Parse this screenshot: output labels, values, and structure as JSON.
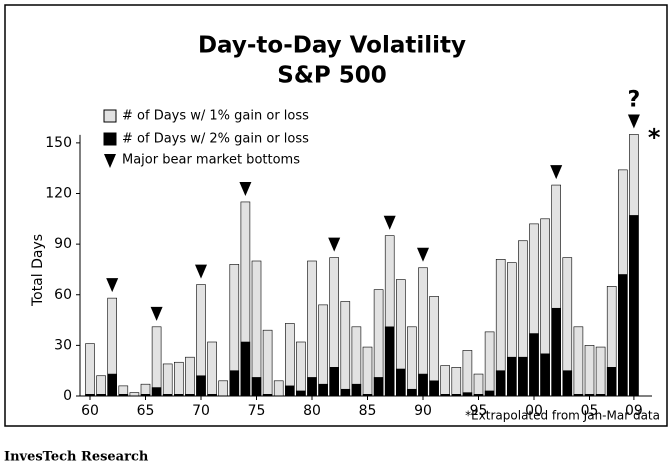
{
  "chart_data": {
    "type": "bar",
    "title": "Day-to-Day Volatility",
    "subtitle": "S&P 500",
    "y_label": "Total Days",
    "categories": [
      "60",
      null,
      null,
      null,
      null,
      "65",
      null,
      null,
      null,
      null,
      "70",
      null,
      null,
      null,
      null,
      "75",
      null,
      null,
      null,
      null,
      "80",
      null,
      null,
      null,
      null,
      "85",
      null,
      null,
      null,
      null,
      "90",
      null,
      null,
      null,
      null,
      "95",
      null,
      null,
      null,
      null,
      "00",
      null,
      null,
      null,
      null,
      "05",
      null,
      null,
      null,
      "09"
    ],
    "series": [
      {
        "name": "# of Days w/ 1% gain or loss",
        "color": "#e2e2e2",
        "values": [
          31,
          12,
          58,
          6,
          2,
          7,
          41,
          19,
          20,
          23,
          66,
          32,
          9,
          78,
          115,
          80,
          39,
          9,
          43,
          32,
          80,
          54,
          82,
          56,
          41,
          29,
          63,
          95,
          69,
          41,
          76,
          59,
          18,
          17,
          27,
          13,
          38,
          81,
          79,
          92,
          102,
          105,
          125,
          82,
          41,
          30,
          29,
          65,
          134,
          155
        ]
      },
      {
        "name": "# of Days w/ 2% gain or loss",
        "color": "#000000",
        "values": [
          1,
          1,
          13,
          1,
          0,
          1,
          5,
          1,
          1,
          1,
          12,
          1,
          0,
          15,
          32,
          11,
          1,
          0,
          6,
          3,
          11,
          7,
          17,
          4,
          7,
          1,
          11,
          41,
          16,
          4,
          13,
          9,
          1,
          1,
          2,
          1,
          3,
          15,
          23,
          23,
          37,
          25,
          52,
          15,
          1,
          1,
          1,
          17,
          72,
          107
        ]
      }
    ],
    "marker_legend": "Major bear market bottoms",
    "bear_market_bottoms": [
      2,
      6,
      10,
      14,
      22,
      27,
      30,
      42,
      49
    ],
    "question_annotation": "?",
    "asterisk_annotation": "*",
    "footnote": "*Extrapolated from Jan-Mar data",
    "source": "InvesTech Research",
    "ylim": [
      0,
      160
    ],
    "yticks": [
      0,
      30,
      60,
      90,
      120,
      150
    ],
    "overlay": true
  }
}
